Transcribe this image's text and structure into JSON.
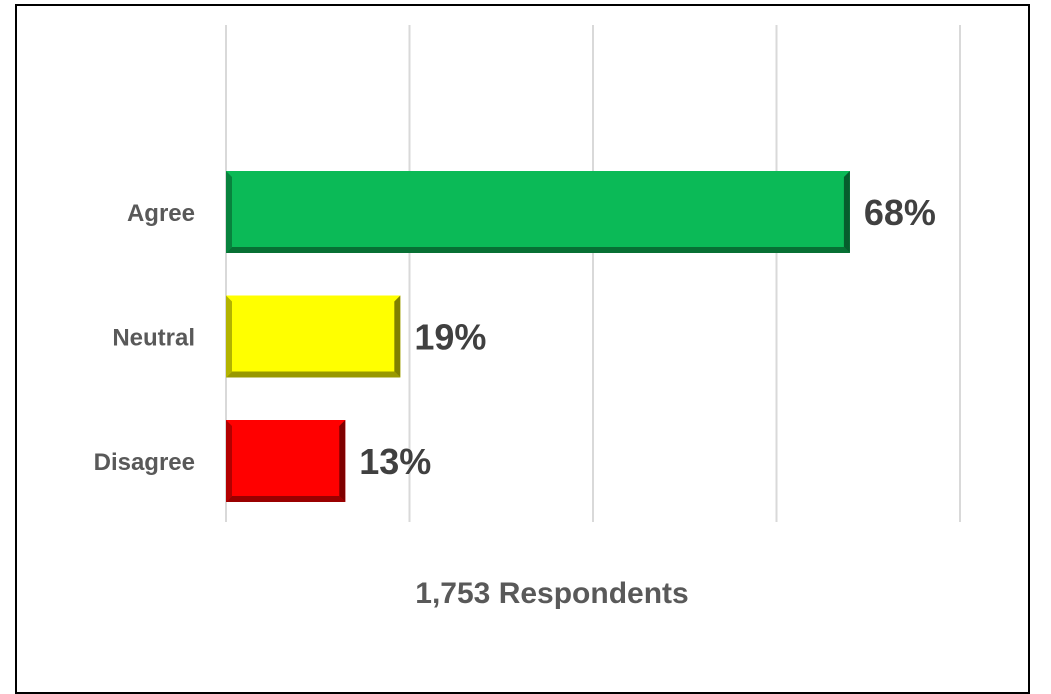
{
  "chart_data": {
    "type": "bar",
    "orientation": "horizontal",
    "categories": [
      "Agree",
      "Neutral",
      "Disagree"
    ],
    "values": [
      68,
      19,
      13
    ],
    "value_labels": [
      "68%",
      "19%",
      "13%"
    ],
    "colors": [
      "#0BBA57",
      "#FFFF00",
      "#FF0000"
    ],
    "xlabel": "1,753 Respondents",
    "xlim": [
      0,
      80
    ],
    "grid": true,
    "legend": "none"
  }
}
